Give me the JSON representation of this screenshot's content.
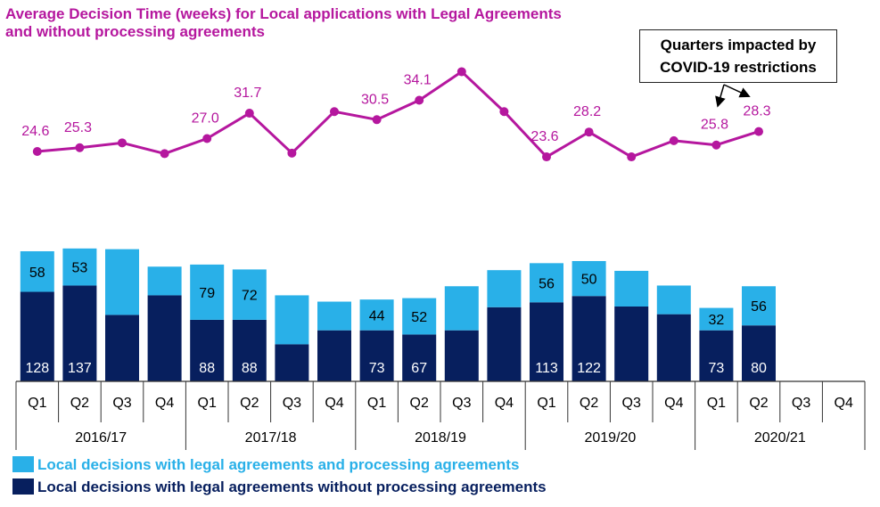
{
  "title_line1": "Average Decision Time (weeks) for Local applications with Legal Agreements",
  "title_line2": "and without processing agreements",
  "callout": {
    "line1": "Quarters impacted by",
    "line2": "COVID-19 restrictions"
  },
  "colors": {
    "light": "#29b0e8",
    "dark": "#071f5e",
    "line": "#b5179e",
    "axis": "#333333"
  },
  "legend": {
    "light_label": "Local decisions with legal agreements and processing agreements",
    "dark_label": "Local decisions with legal agreements without processing agreements"
  },
  "chart_data": {
    "type": "bar",
    "subtype": "stacked bar with line overlay",
    "title": "Average Decision Time (weeks) for Local applications with Legal Agreements and without processing agreements",
    "categories": [
      "Q1",
      "Q2",
      "Q3",
      "Q4",
      "Q1",
      "Q2",
      "Q3",
      "Q4",
      "Q1",
      "Q2",
      "Q3",
      "Q4",
      "Q1",
      "Q2",
      "Q3",
      "Q4",
      "Q1",
      "Q2",
      "Q3",
      "Q4"
    ],
    "years": [
      {
        "label": "2016/17",
        "quarters": 4
      },
      {
        "label": "2017/18",
        "quarters": 4
      },
      {
        "label": "2018/19",
        "quarters": 4
      },
      {
        "label": "2019/20",
        "quarters": 4
      },
      {
        "label": "2020/21",
        "quarters": 4
      }
    ],
    "series": [
      {
        "name": "Local decisions with legal agreements without processing agreements",
        "color": "#071f5e",
        "values": [
          128,
          137,
          95,
          123,
          88,
          88,
          53,
          73,
          73,
          67,
          73,
          106,
          113,
          122,
          107,
          96,
          73,
          80,
          null,
          null
        ],
        "labels": [
          "128",
          "137",
          "",
          "",
          "88",
          "88",
          "",
          "",
          "73",
          "67",
          "",
          "",
          "113",
          "122",
          "",
          "",
          "73",
          "80",
          "",
          ""
        ]
      },
      {
        "name": "Local decisions with legal agreements and processing agreements",
        "color": "#29b0e8",
        "values": [
          58,
          53,
          94,
          41,
          79,
          72,
          70,
          41,
          44,
          52,
          63,
          53,
          56,
          50,
          51,
          41,
          32,
          56,
          null,
          null
        ],
        "labels": [
          "58",
          "53",
          "",
          "",
          "79",
          "72",
          "",
          "",
          "44",
          "52",
          "",
          "",
          "56",
          "50",
          "",
          "",
          "32",
          "56",
          "",
          ""
        ]
      },
      {
        "name": "Average Decision Time (weeks)",
        "type": "line",
        "color": "#b5179e",
        "values": [
          24.6,
          25.3,
          26.2,
          24.2,
          27.0,
          31.7,
          24.3,
          32.0,
          30.5,
          34.1,
          39.4,
          32.0,
          23.6,
          28.2,
          23.6,
          26.6,
          25.8,
          28.3,
          null,
          null
        ],
        "labels": [
          "24.6",
          "25.3",
          "",
          "",
          "27.0",
          "31.7",
          "",
          "",
          "30.5",
          "34.1",
          "",
          "",
          "23.6",
          "28.2",
          "",
          "",
          "25.8",
          "28.3",
          "",
          ""
        ]
      }
    ],
    "covid_impacted_quarters": [
      "2020/21 Q1",
      "2020/21 Q2"
    ],
    "legend_position": "bottom-left"
  }
}
